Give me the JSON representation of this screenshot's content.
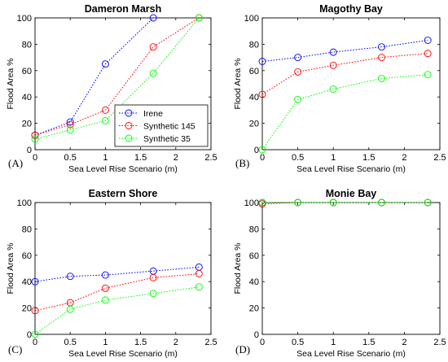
{
  "chart_data": [
    {
      "type": "line",
      "panel_label": "(A)",
      "title": "Dameron Marsh",
      "xlabel": "Sea Level Rise Scenario (m)",
      "ylabel": "Flood Area %",
      "xlim": [
        0,
        2.5
      ],
      "ylim": [
        0,
        100
      ],
      "xticks": [
        "0",
        "0.5",
        "1",
        "1.5",
        "2",
        "2.5"
      ],
      "yticks": [
        "0",
        "20",
        "40",
        "60",
        "80",
        "100"
      ],
      "grid": false,
      "legend": "bottom-right",
      "series": [
        {
          "name": "Irene",
          "color": "#0000ff",
          "x": [
            0,
            0.5,
            1.0,
            1.68
          ],
          "y": [
            11,
            21,
            65,
            100
          ]
        },
        {
          "name": "Synthetic 145",
          "color": "#ff0000",
          "x": [
            0,
            0.5,
            1.0,
            1.68,
            2.33
          ],
          "y": [
            11,
            19,
            30,
            78,
            100
          ]
        },
        {
          "name": "Synthetic 35",
          "color": "#00ff00",
          "x": [
            0,
            0.5,
            1.0,
            1.68,
            2.33
          ],
          "y": [
            8,
            15,
            22,
            58,
            100
          ]
        }
      ]
    },
    {
      "type": "line",
      "panel_label": "(B)",
      "title": "Magothy Bay",
      "xlabel": "Sea Level Rise Scenario (m)",
      "ylabel": "Flood Area %",
      "xlim": [
        0,
        2.5
      ],
      "ylim": [
        0,
        100
      ],
      "xticks": [
        "0",
        "0.5",
        "1",
        "1.5",
        "2",
        "2.5"
      ],
      "yticks": [
        "0",
        "20",
        "40",
        "60",
        "80",
        "100"
      ],
      "grid": false,
      "series": [
        {
          "name": "Irene",
          "color": "#0000ff",
          "x": [
            0,
            0.5,
            1.0,
            1.68,
            2.33
          ],
          "y": [
            67,
            70,
            74,
            78,
            83
          ]
        },
        {
          "name": "Synthetic 145",
          "color": "#ff0000",
          "x": [
            0,
            0.5,
            1.0,
            1.68,
            2.33
          ],
          "y": [
            42,
            59,
            64,
            70,
            73
          ]
        },
        {
          "name": "Synthetic 35",
          "color": "#00ff00",
          "x": [
            0,
            0.5,
            1.0,
            1.68,
            2.33
          ],
          "y": [
            0,
            38,
            46,
            54,
            57
          ]
        }
      ]
    },
    {
      "type": "line",
      "panel_label": "(C)",
      "title": "Eastern Shore",
      "xlabel": "Sea Level Rise Scenario (m)",
      "ylabel": "Flood Area %",
      "xlim": [
        0,
        2.5
      ],
      "ylim": [
        0,
        100
      ],
      "xticks": [
        "0",
        "0.5",
        "1",
        "1.5",
        "2",
        "2.5"
      ],
      "yticks": [
        "0",
        "20",
        "40",
        "60",
        "80",
        "100"
      ],
      "grid": false,
      "series": [
        {
          "name": "Irene",
          "color": "#0000ff",
          "x": [
            0,
            0.5,
            1.0,
            1.68,
            2.33
          ],
          "y": [
            40,
            44,
            45,
            48,
            51
          ]
        },
        {
          "name": "Synthetic 145",
          "color": "#ff0000",
          "x": [
            0,
            0.5,
            1.0,
            1.68,
            2.33
          ],
          "y": [
            18,
            24,
            35,
            43,
            46
          ]
        },
        {
          "name": "Synthetic 35",
          "color": "#00ff00",
          "x": [
            0,
            0.5,
            1.0,
            1.68,
            2.33
          ],
          "y": [
            0,
            19,
            26,
            31,
            36
          ]
        }
      ]
    },
    {
      "type": "line",
      "panel_label": "(D)",
      "title": "Monie Bay",
      "xlabel": "Sea Level Rise Scenario (m)",
      "ylabel": "Flood Area %",
      "xlim": [
        0,
        2.5
      ],
      "ylim": [
        0,
        100
      ],
      "xticks": [
        "0",
        "0.5",
        "1",
        "1.5",
        "2",
        "2.5"
      ],
      "yticks": [
        "0",
        "20",
        "40",
        "60",
        "80",
        "100"
      ],
      "grid": false,
      "series": [
        {
          "name": "Irene",
          "color": "#0000ff",
          "x": [
            0,
            0.5,
            1.0,
            1.68,
            2.33
          ],
          "y": [
            100,
            100,
            100,
            100,
            100
          ]
        },
        {
          "name": "Synthetic 145",
          "color": "#ff0000",
          "x": [
            0,
            0.5,
            1.0,
            1.68,
            2.33
          ],
          "y": [
            99,
            100,
            100,
            100,
            100
          ]
        },
        {
          "name": "Synthetic 35",
          "color": "#00ff00",
          "x": [
            0,
            0.5,
            1.0,
            1.68,
            2.33
          ],
          "y": [
            100,
            100,
            100,
            100,
            100
          ]
        }
      ]
    }
  ]
}
